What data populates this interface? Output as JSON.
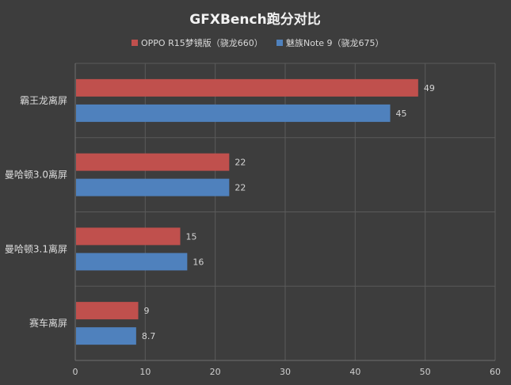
{
  "colors": {
    "background": "#3d3d3d",
    "series_0": "#c0504d",
    "series_1": "#4f81bd"
  },
  "chart_data": {
    "type": "bar",
    "orientation": "horizontal",
    "title": "GFXBench跑分对比",
    "categories": [
      "霸王龙离屏",
      "曼哈顿3.0离屏",
      "曼哈顿3.1离屏",
      "赛车离屏"
    ],
    "series": [
      {
        "name": "OPPO R15梦镜版（骁龙660）",
        "values": [
          49,
          22,
          15,
          9
        ],
        "labels": [
          "49",
          "22",
          "15",
          "9"
        ]
      },
      {
        "name": "魅族Note 9（骁龙675）",
        "values": [
          45,
          22,
          16,
          8.7
        ],
        "labels": [
          "45",
          "22",
          "16",
          "8.7"
        ]
      }
    ],
    "xlim": [
      0,
      60
    ],
    "xticks": [
      "0",
      "10",
      "20",
      "30",
      "40",
      "50",
      "60"
    ],
    "grid": true,
    "legend": "top"
  }
}
